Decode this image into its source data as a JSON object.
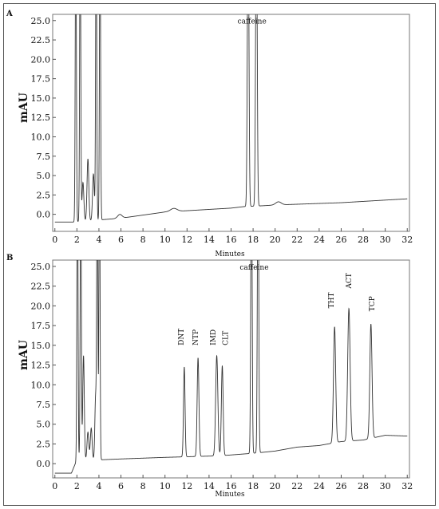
{
  "chart_data": [
    {
      "panel": "A",
      "type": "line",
      "ylabel": "mAU",
      "xlabel": "Minutes",
      "xlim": [
        -0.2,
        32.2
      ],
      "ylim": [
        -2.2,
        25.8
      ],
      "xticks": [
        0,
        2,
        4,
        6,
        8,
        10,
        12,
        14,
        16,
        18,
        20,
        22,
        24,
        26,
        28,
        30,
        32
      ],
      "yticks": [
        0.0,
        2.5,
        5.0,
        7.5,
        10.0,
        12.5,
        15.0,
        17.5,
        20.0,
        22.5,
        25.0
      ],
      "ytick_labels": [
        "0.0",
        "2.5",
        "5.0",
        "7.5",
        "10.0",
        "12.5",
        "15.0",
        "17.5",
        "20.0",
        "22.5",
        "25.0"
      ],
      "grid": false,
      "baseline": [
        [
          0,
          -1.0
        ],
        [
          1.6,
          -1.0
        ],
        [
          6,
          -0.5
        ],
        [
          10,
          0.3
        ],
        [
          16,
          0.8
        ],
        [
          17.2,
          1.0
        ],
        [
          18.8,
          1.1
        ],
        [
          20,
          1.2
        ],
        [
          26,
          1.5
        ],
        [
          32,
          2.0
        ]
      ],
      "peaks": [
        {
          "t": 1.9,
          "h": 40,
          "w": 0.05
        },
        {
          "t": 2.3,
          "h": 40,
          "w": 0.05
        },
        {
          "t": 2.55,
          "h": 5.0,
          "w": 0.08
        },
        {
          "t": 3.0,
          "h": 8.0,
          "w": 0.08
        },
        {
          "t": 3.5,
          "h": 6.0,
          "w": 0.08
        },
        {
          "t": 3.75,
          "h": 40,
          "w": 0.05
        },
        {
          "t": 4.1,
          "h": 40,
          "w": 0.05
        },
        {
          "t": 5.9,
          "h": 0.5,
          "w": 0.2
        },
        {
          "t": 10.8,
          "h": 0.4,
          "w": 0.3
        },
        {
          "t": 17.55,
          "h": 40,
          "w": 0.07
        },
        {
          "t": 18.3,
          "h": 40,
          "w": 0.07
        },
        {
          "t": 20.3,
          "h": 0.4,
          "w": 0.25
        }
      ],
      "annotations": [
        {
          "text": "caffeine",
          "x": 17.9,
          "y": 24.6
        }
      ]
    },
    {
      "panel": "B",
      "type": "line",
      "ylabel": "mAU",
      "xlabel": "Minutes",
      "xlim": [
        -0.2,
        32.2
      ],
      "ylim": [
        -1.8,
        25.8
      ],
      "xticks": [
        0,
        2,
        4,
        6,
        8,
        10,
        12,
        14,
        16,
        18,
        20,
        22,
        24,
        26,
        28,
        30,
        32
      ],
      "yticks": [
        0.0,
        2.5,
        5.0,
        7.5,
        10.0,
        12.5,
        15.0,
        17.5,
        20.0,
        22.5,
        25.0
      ],
      "ytick_labels": [
        "0.0",
        "2.5",
        "5.0",
        "7.5",
        "10.0",
        "12.5",
        "15.0",
        "17.5",
        "20.0",
        "22.5",
        "25.0"
      ],
      "grid": false,
      "baseline": [
        [
          0,
          -1.2
        ],
        [
          1.5,
          -1.2
        ],
        [
          2.0,
          0.5
        ],
        [
          4.3,
          0.5
        ],
        [
          6,
          0.6
        ],
        [
          10,
          0.8
        ],
        [
          15,
          1.0
        ],
        [
          17.8,
          1.3
        ],
        [
          18.6,
          1.4
        ],
        [
          20,
          1.6
        ],
        [
          22,
          2.1
        ],
        [
          24,
          2.3
        ],
        [
          26,
          2.8
        ],
        [
          28,
          3.0
        ],
        [
          30,
          3.6
        ],
        [
          32,
          3.5
        ]
      ],
      "peaks": [
        {
          "t": 2.05,
          "h": 40,
          "w": 0.05
        },
        {
          "t": 2.35,
          "h": 40,
          "w": 0.05
        },
        {
          "t": 2.6,
          "h": 13.2,
          "w": 0.07
        },
        {
          "t": 3.0,
          "h": 3.5,
          "w": 0.08
        },
        {
          "t": 3.3,
          "h": 4.0,
          "w": 0.08
        },
        {
          "t": 3.7,
          "h": 8.0,
          "w": 0.07
        },
        {
          "t": 3.85,
          "h": 40,
          "w": 0.05
        },
        {
          "t": 4.05,
          "h": 40,
          "w": 0.05
        },
        {
          "t": 11.75,
          "h": 11.4,
          "w": 0.07
        },
        {
          "t": 13.0,
          "h": 12.5,
          "w": 0.08
        },
        {
          "t": 14.7,
          "h": 12.7,
          "w": 0.1
        },
        {
          "t": 15.2,
          "h": 11.4,
          "w": 0.08
        },
        {
          "t": 17.85,
          "h": 40,
          "w": 0.06
        },
        {
          "t": 18.45,
          "h": 40,
          "w": 0.06
        },
        {
          "t": 25.4,
          "h": 14.7,
          "w": 0.1
        },
        {
          "t": 26.7,
          "h": 16.8,
          "w": 0.11
        },
        {
          "t": 28.7,
          "h": 14.5,
          "w": 0.1
        }
      ],
      "annotations": [
        {
          "text": "caffeine",
          "x": 18.1,
          "y": 24.6,
          "rotate": false
        },
        {
          "text": "DNT",
          "x": 11.7,
          "y": 15.0,
          "rotate": true
        },
        {
          "text": "NTP",
          "x": 13.0,
          "y": 15.0,
          "rotate": true
        },
        {
          "text": "IMD",
          "x": 14.6,
          "y": 15.0,
          "rotate": true
        },
        {
          "text": "CLT",
          "x": 15.7,
          "y": 15.0,
          "rotate": true
        },
        {
          "text": "THT",
          "x": 25.3,
          "y": 19.7,
          "rotate": true
        },
        {
          "text": "ACT",
          "x": 26.9,
          "y": 22.2,
          "rotate": true
        },
        {
          "text": "TCP",
          "x": 29.0,
          "y": 19.3,
          "rotate": true
        }
      ]
    }
  ]
}
